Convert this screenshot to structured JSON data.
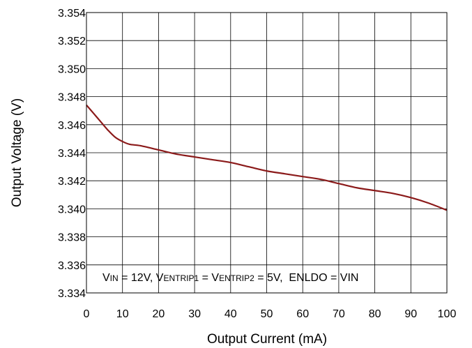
{
  "chart_data": {
    "type": "line",
    "title": "",
    "xlabel": "Output Current (mA)",
    "ylabel": "Output Voltage (V)",
    "xlim": [
      0,
      100
    ],
    "ylim": [
      3.334,
      3.354
    ],
    "x_ticks": [
      "0",
      "10",
      "20",
      "30",
      "40",
      "50",
      "60",
      "70",
      "80",
      "90",
      "100"
    ],
    "y_ticks": [
      "3.334",
      "3.336",
      "3.338",
      "3.340",
      "3.342",
      "3.344",
      "3.346",
      "3.348",
      "3.350",
      "3.352",
      "3.354"
    ],
    "grid": true,
    "series": [
      {
        "color": "#8b1a1a",
        "x": [
          0,
          2,
          4,
          6,
          8,
          10,
          12,
          15,
          20,
          25,
          30,
          35,
          40,
          45,
          50,
          55,
          60,
          65,
          70,
          75,
          80,
          85,
          90,
          95,
          100
        ],
        "y": [
          3.3474,
          3.3468,
          3.3462,
          3.3456,
          3.3451,
          3.3448,
          3.3446,
          3.3445,
          3.3442,
          3.3439,
          3.3437,
          3.3435,
          3.3433,
          3.343,
          3.3427,
          3.3425,
          3.3423,
          3.3421,
          3.3418,
          3.3415,
          3.3413,
          3.3411,
          3.3408,
          3.3404,
          3.3399
        ]
      }
    ],
    "annotation": {
      "v": "V",
      "in_sub": "IN",
      "eq_12": " = 12V, ",
      "entrip1_sub": "ENTRIP1",
      "eq": " = ",
      "entrip2_sub": "ENTRIP2",
      "eq_5": " = 5V,  ENLDO = VIN"
    }
  }
}
